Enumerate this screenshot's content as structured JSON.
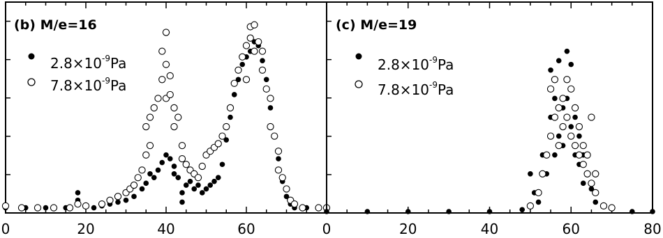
{
  "chart_data": [
    {
      "type": "scatter",
      "title": "(b) M/e=16",
      "xlim": [
        0,
        80
      ],
      "xticks": [
        "0",
        "20",
        "40",
        "60"
      ],
      "legend": {
        "placement": "top-left"
      },
      "series": [
        {
          "label_prefix": "2.8×10",
          "label_exp": "-9",
          "label_unit": "Pa",
          "marker": "filled",
          "points": [
            [
              0,
              0.02
            ],
            [
              5,
              0.02
            ],
            [
              10,
              0.02
            ],
            [
              15,
              0.02
            ],
            [
              18,
              0.1
            ],
            [
              18,
              0.06
            ],
            [
              22,
              0.02
            ],
            [
              24,
              0.03
            ],
            [
              26,
              0.04
            ],
            [
              28,
              0.05
            ],
            [
              30,
              0.06
            ],
            [
              32,
              0.08
            ],
            [
              34,
              0.12
            ],
            [
              35,
              0.15
            ],
            [
              36,
              0.2
            ],
            [
              37,
              0.18
            ],
            [
              38,
              0.22
            ],
            [
              39,
              0.26
            ],
            [
              40,
              0.3
            ],
            [
              41,
              0.28
            ],
            [
              42,
              0.24
            ],
            [
              42,
              0.2
            ],
            [
              43,
              0.18
            ],
            [
              44,
              0.1
            ],
            [
              44,
              0.05
            ],
            [
              45,
              0.14
            ],
            [
              46,
              0.16
            ],
            [
              47,
              0.12
            ],
            [
              48,
              0.14
            ],
            [
              49,
              0.1
            ],
            [
              50,
              0.12
            ],
            [
              51,
              0.14
            ],
            [
              52,
              0.16
            ],
            [
              53,
              0.18
            ],
            [
              54,
              0.25
            ],
            [
              55,
              0.38
            ],
            [
              56,
              0.5
            ],
            [
              57,
              0.62
            ],
            [
              58,
              0.7
            ],
            [
              59,
              0.78
            ],
            [
              60,
              0.82
            ],
            [
              61,
              0.85
            ],
            [
              62,
              0.9
            ],
            [
              63,
              0.88
            ],
            [
              64,
              0.8
            ],
            [
              65,
              0.7
            ],
            [
              66,
              0.55
            ],
            [
              67,
              0.4
            ],
            [
              68,
              0.28
            ],
            [
              69,
              0.16
            ],
            [
              70,
              0.08
            ],
            [
              71,
              0.04
            ],
            [
              72,
              0.02
            ],
            [
              75,
              0.02
            ],
            [
              80,
              0.02
            ]
          ]
        },
        {
          "label_prefix": "7.8×10",
          "label_exp": "-9",
          "label_unit": "Pa",
          "marker": "open",
          "points": [
            [
              0,
              0.03
            ],
            [
              4,
              0.02
            ],
            [
              8,
              0.02
            ],
            [
              12,
              0.02
            ],
            [
              16,
              0.02
            ],
            [
              18,
              0.04
            ],
            [
              20,
              0.03
            ],
            [
              24,
              0.04
            ],
            [
              26,
              0.06
            ],
            [
              28,
              0.08
            ],
            [
              30,
              0.1
            ],
            [
              31,
              0.12
            ],
            [
              32,
              0.14
            ],
            [
              33,
              0.18
            ],
            [
              34,
              0.22
            ],
            [
              35,
              0.3
            ],
            [
              35,
              0.45
            ],
            [
              36,
              0.35
            ],
            [
              36,
              0.5
            ],
            [
              37,
              0.55
            ],
            [
              38,
              0.6
            ],
            [
              39,
              0.7
            ],
            [
              39,
              0.85
            ],
            [
              40,
              0.78
            ],
            [
              40,
              0.95
            ],
            [
              40,
              0.6
            ],
            [
              41,
              0.62
            ],
            [
              41,
              0.72
            ],
            [
              42,
              0.55
            ],
            [
              42,
              0.45
            ],
            [
              43,
              0.5
            ],
            [
              44,
              0.35
            ],
            [
              44,
              0.28
            ],
            [
              45,
              0.25
            ],
            [
              46,
              0.22
            ],
            [
              47,
              0.2
            ],
            [
              48,
              0.18
            ],
            [
              49,
              0.24
            ],
            [
              50,
              0.3
            ],
            [
              51,
              0.32
            ],
            [
              52,
              0.34
            ],
            [
              53,
              0.36
            ],
            [
              54,
              0.4
            ],
            [
              55,
              0.45
            ],
            [
              56,
              0.55
            ],
            [
              57,
              0.68
            ],
            [
              58,
              0.75
            ],
            [
              59,
              0.82
            ],
            [
              60,
              0.88
            ],
            [
              60,
              0.7
            ],
            [
              61,
              0.92
            ],
            [
              61,
              0.98
            ],
            [
              62,
              0.99
            ],
            [
              62,
              0.85
            ],
            [
              63,
              0.9
            ],
            [
              64,
              0.75
            ],
            [
              64,
              0.85
            ],
            [
              65,
              0.65
            ],
            [
              66,
              0.6
            ],
            [
              66,
              0.45
            ],
            [
              67,
              0.4
            ],
            [
              68,
              0.32
            ],
            [
              68,
              0.22
            ],
            [
              69,
              0.18
            ],
            [
              70,
              0.12
            ],
            [
              71,
              0.06
            ],
            [
              72,
              0.04
            ],
            [
              74,
              0.02
            ],
            [
              78,
              0.02
            ],
            [
              80,
              0.02
            ]
          ]
        }
      ]
    },
    {
      "type": "scatter",
      "title": "(c) M/e=19",
      "xlim": [
        0,
        80
      ],
      "xticks": [
        "0",
        "20",
        "40",
        "60",
        "80"
      ],
      "legend": {
        "placement": "top-left"
      },
      "series": [
        {
          "label_prefix": "2.8×10",
          "label_exp": "-9",
          "label_unit": "Pa",
          "marker": "filled",
          "points": [
            [
              0,
              0
            ],
            [
              10,
              0
            ],
            [
              20,
              0
            ],
            [
              30,
              0
            ],
            [
              40,
              0
            ],
            [
              48,
              0.01
            ],
            [
              50,
              0.2
            ],
            [
              51,
              0.1
            ],
            [
              52,
              0.05
            ],
            [
              53,
              0.3
            ],
            [
              54,
              0.2
            ],
            [
              55,
              0.5
            ],
            [
              55,
              0.75
            ],
            [
              56,
              0.6
            ],
            [
              56,
              0.3
            ],
            [
              57,
              0.4
            ],
            [
              57,
              0.8
            ],
            [
              58,
              0.55
            ],
            [
              58,
              0.35
            ],
            [
              59,
              0.6
            ],
            [
              59,
              0.85
            ],
            [
              60,
              0.78
            ],
            [
              60,
              0.45
            ],
            [
              61,
              0.5
            ],
            [
              61,
              0.3
            ],
            [
              62,
              0.4
            ],
            [
              62,
              0.25
            ],
            [
              63,
              0.3
            ],
            [
              63,
              0.15
            ],
            [
              64,
              0.2
            ],
            [
              65,
              0.12
            ],
            [
              66,
              0.05
            ],
            [
              70,
              0.02
            ],
            [
              75,
              0
            ],
            [
              80,
              0
            ]
          ]
        },
        {
          "label_prefix": "7.8×10",
          "label_exp": "-9",
          "label_unit": "Pa",
          "marker": "open",
          "points": [
            [
              50,
              0.03
            ],
            [
              52,
              0.1
            ],
            [
              53,
              0.2
            ],
            [
              54,
              0.3
            ],
            [
              55,
              0.4
            ],
            [
              55,
              0.65
            ],
            [
              56,
              0.5
            ],
            [
              56,
              0.7
            ],
            [
              57,
              0.35
            ],
            [
              57,
              0.55
            ],
            [
              58,
              0.45
            ],
            [
              58,
              0.6
            ],
            [
              59,
              0.5
            ],
            [
              59,
              0.7
            ],
            [
              60,
              0.4
            ],
            [
              60,
              0.65
            ],
            [
              61,
              0.35
            ],
            [
              61,
              0.55
            ],
            [
              62,
              0.3
            ],
            [
              62,
              0.45
            ],
            [
              63,
              0.25
            ],
            [
              63,
              0.35
            ],
            [
              64,
              0.2
            ],
            [
              64,
              0.3
            ],
            [
              65,
              0.15
            ],
            [
              65,
              0.5
            ],
            [
              66,
              0.1
            ],
            [
              66,
              0.2
            ],
            [
              68,
              0.03
            ],
            [
              70,
              0.02
            ]
          ]
        }
      ]
    }
  ]
}
